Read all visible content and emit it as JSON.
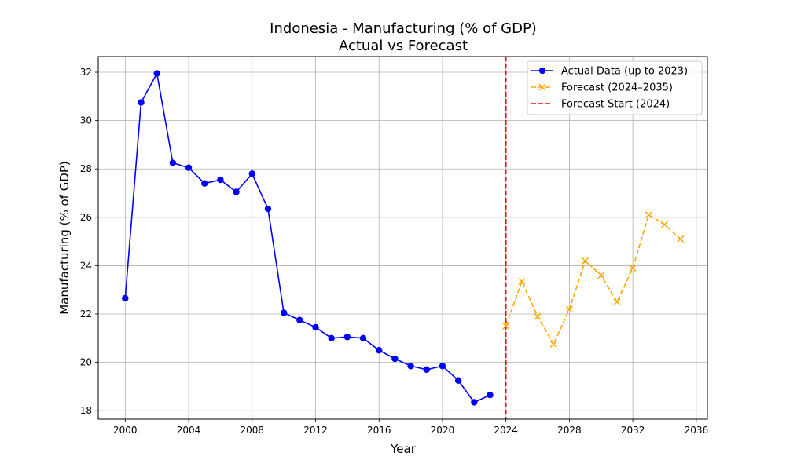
{
  "chart_data": {
    "type": "line",
    "title": "Indonesia - Manufacturing (% of GDP)",
    "subtitle": "Actual vs Forecast",
    "xlabel": "Year",
    "ylabel": "Manufacturing (% of GDP)",
    "xlim": [
      1998.3,
      2036.7
    ],
    "ylim": [
      17.65,
      32.65
    ],
    "x_ticks": [
      2000,
      2004,
      2008,
      2012,
      2016,
      2020,
      2024,
      2028,
      2032,
      2036
    ],
    "y_ticks": [
      18,
      20,
      22,
      24,
      26,
      28,
      30,
      32
    ],
    "grid": true,
    "legend_position": "top-right",
    "series": [
      {
        "name": "Actual Data (up to 2023)",
        "color": "#0000ff",
        "style": "solid",
        "marker": "circle",
        "x": [
          2000,
          2001,
          2002,
          2003,
          2004,
          2005,
          2006,
          2007,
          2008,
          2009,
          2010,
          2011,
          2012,
          2013,
          2014,
          2015,
          2016,
          2017,
          2018,
          2019,
          2020,
          2021,
          2022,
          2023
        ],
        "y": [
          22.65,
          30.75,
          31.95,
          28.25,
          28.05,
          27.4,
          27.55,
          27.05,
          27.8,
          26.35,
          22.05,
          21.75,
          21.45,
          21.0,
          21.05,
          21.0,
          20.5,
          20.15,
          19.85,
          19.7,
          19.85,
          19.25,
          18.35,
          18.65
        ]
      },
      {
        "name": "Forecast (2024–2035)",
        "color": "#ffa500",
        "style": "dashed",
        "marker": "x",
        "x": [
          2024,
          2025,
          2026,
          2027,
          2028,
          2029,
          2030,
          2031,
          2032,
          2033,
          2034,
          2035
        ],
        "y": [
          21.5,
          23.35,
          21.9,
          20.75,
          22.2,
          24.2,
          23.6,
          22.5,
          23.9,
          26.1,
          25.7,
          25.1
        ]
      }
    ],
    "annotations": [
      {
        "name": "Forecast Start (2024)",
        "type": "vline",
        "x": 2024,
        "color": "#ff0000",
        "style": "dashed"
      }
    ]
  }
}
